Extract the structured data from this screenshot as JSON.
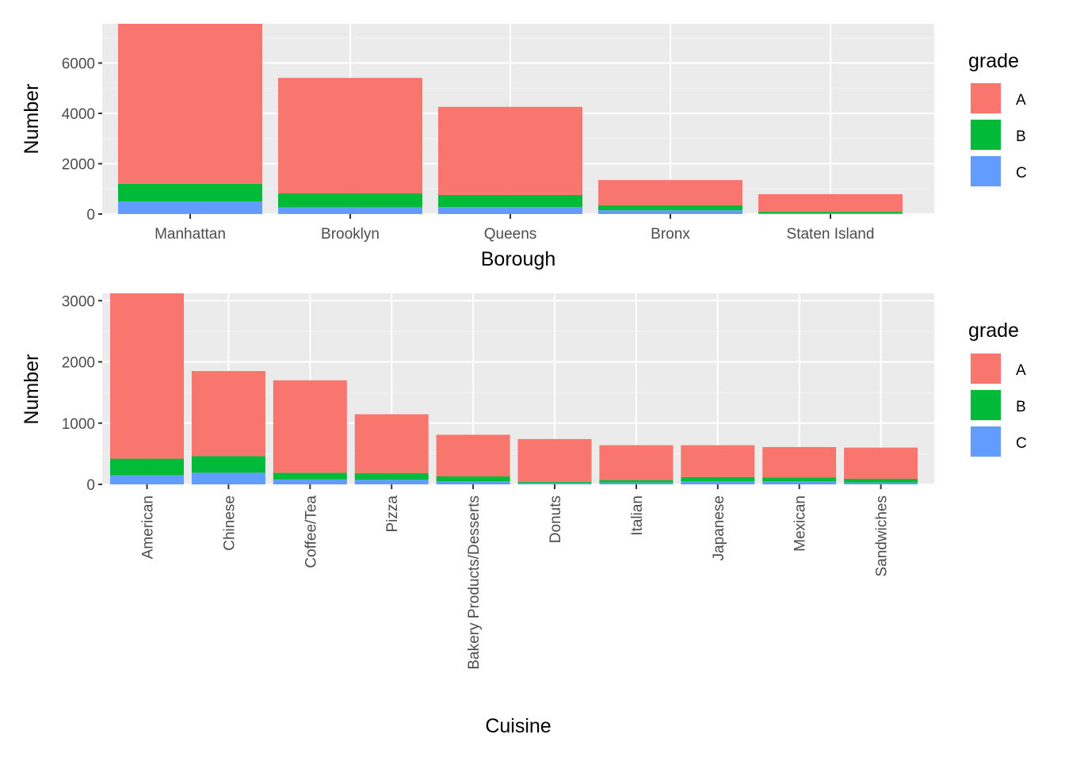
{
  "chart_data": [
    {
      "type": "bar",
      "stacked": true,
      "xlabel": "Borough",
      "ylabel": "Number",
      "categories": [
        "Manhattan",
        "Brooklyn",
        "Queens",
        "Bronx",
        "Staten Island"
      ],
      "series": [
        {
          "name": "A",
          "color": "#F8766D",
          "values": [
            6360,
            4590,
            3500,
            1000,
            700
          ]
        },
        {
          "name": "B",
          "color": "#00BA38",
          "values": [
            700,
            550,
            480,
            200,
            60
          ]
        },
        {
          "name": "C",
          "color": "#619CFF",
          "values": [
            500,
            270,
            280,
            150,
            30
          ]
        }
      ],
      "ylim": [
        0,
        7560
      ],
      "y_ticks": [
        0,
        2000,
        4000,
        6000
      ],
      "y_tick_labels": [
        "0",
        "2000",
        "4000",
        "6000"
      ],
      "grid": true,
      "legend": {
        "title": "grade",
        "placement": "right",
        "labels": [
          "A",
          "B",
          "C"
        ]
      }
    },
    {
      "type": "bar",
      "stacked": true,
      "xlabel": "Cuisine",
      "ylabel": "Number",
      "x_tick_rotation": -90,
      "categories": [
        "American",
        "Chinese",
        "Coffee/Tea",
        "Pizza",
        "Bakery Products/Desserts",
        "Donuts",
        "Italian",
        "Japanese",
        "Mexican",
        "Sandwiches"
      ],
      "series": [
        {
          "name": "A",
          "color": "#F8766D",
          "values": [
            2700,
            1390,
            1510,
            960,
            680,
            700,
            570,
            520,
            500,
            510
          ]
        },
        {
          "name": "B",
          "color": "#00BA38",
          "values": [
            270,
            270,
            110,
            110,
            80,
            15,
            40,
            70,
            60,
            60
          ]
        },
        {
          "name": "C",
          "color": "#619CFF",
          "values": [
            150,
            190,
            80,
            75,
            50,
            25,
            30,
            50,
            50,
            30
          ]
        }
      ],
      "ylim": [
        0,
        3120
      ],
      "y_ticks": [
        0,
        1000,
        2000,
        3000
      ],
      "y_tick_labels": [
        "0",
        "1000",
        "2000",
        "3000"
      ],
      "grid": true,
      "legend": {
        "title": "grade",
        "placement": "right",
        "labels": [
          "A",
          "B",
          "C"
        ]
      }
    }
  ]
}
